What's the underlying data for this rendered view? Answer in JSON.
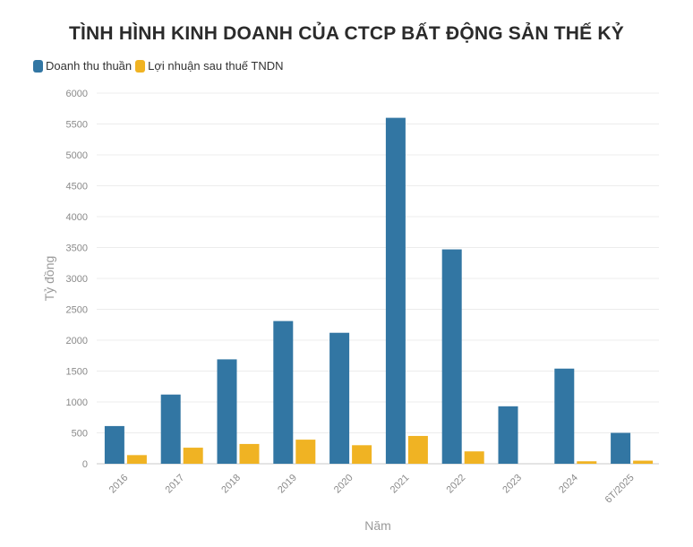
{
  "chart_data": {
    "type": "bar",
    "title": "TÌNH HÌNH KINH DOANH CỦA CTCP BẤT ĐỘNG SẢN THẾ KỶ",
    "xlabel": "Năm",
    "ylabel": "Tỷ đồng",
    "ylim": [
      0,
      6000
    ],
    "yticks": [
      "0",
      "500",
      "1000",
      "1500",
      "2000",
      "2500",
      "3000",
      "3500",
      "4000",
      "4500",
      "5000",
      "5500",
      "6000"
    ],
    "categories": [
      "2016",
      "2017",
      "2018",
      "2019",
      "2020",
      "2021",
      "2022",
      "2023",
      "2024",
      "6T/2025"
    ],
    "series": [
      {
        "name": "Doanh thu thuần",
        "color": "#3276a3",
        "values": [
          610,
          1120,
          1690,
          2310,
          2120,
          5600,
          3470,
          930,
          1540,
          500
        ]
      },
      {
        "name": "Lợi nhuận sau thuế TNDN",
        "color": "#f0b323",
        "values": [
          140,
          260,
          320,
          390,
          300,
          450,
          200,
          0,
          40,
          50
        ]
      }
    ],
    "grid": true,
    "legend_position": "top-left"
  }
}
